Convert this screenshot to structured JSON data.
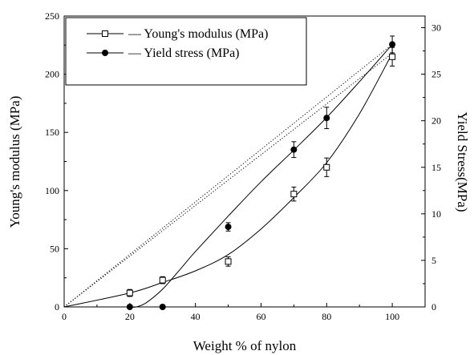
{
  "chart_data": {
    "type": "scatter",
    "xlabel": "Weight % of nylon",
    "ylabel_left": "Young's modulus (MPa)",
    "ylabel_right": "Yield Stress(MPa)",
    "xlim": [
      0,
      110
    ],
    "ylim_left": [
      0,
      250
    ],
    "ylim_right": [
      0,
      31.25
    ],
    "x_ticks": [
      0,
      20,
      40,
      60,
      80,
      100
    ],
    "y_left_ticks": [
      0,
      50,
      100,
      150,
      200,
      250
    ],
    "y_right_ticks": [
      0,
      5,
      10,
      15,
      20,
      25,
      30
    ],
    "grid": false,
    "legend_position": "top-left",
    "series": [
      {
        "name": "Young's modulus (MPa)",
        "axis": "left",
        "marker": "open-square",
        "x": [
          20,
          30,
          50,
          70,
          80,
          100
        ],
        "y": [
          12,
          23,
          39,
          97,
          120,
          215
        ],
        "error": [
          3,
          3,
          4,
          6,
          8,
          8
        ],
        "fit_x": [
          0,
          20,
          30,
          40,
          50,
          60,
          70,
          80,
          90,
          100
        ],
        "fit_y": [
          0,
          12,
          21,
          31,
          45,
          67,
          94,
          124,
          166,
          218
        ],
        "rule_of_mixtures": [
          [
            0,
            0
          ],
          [
            100,
            218
          ]
        ]
      },
      {
        "name": "Yield stress (MPa)",
        "axis": "right",
        "marker": "filled-circle",
        "x": [
          20,
          30,
          50,
          70,
          80,
          100
        ],
        "y": [
          0,
          0,
          8.6,
          16.9,
          20.3,
          28.2
        ],
        "error": [
          0,
          0,
          0.45,
          0.85,
          1.15,
          0.9
        ],
        "fit_x": [
          20,
          22,
          25,
          30,
          35,
          40,
          50,
          60,
          70,
          80,
          90,
          100
        ],
        "fit_y": [
          0,
          0,
          0.45,
          1.9,
          3.9,
          5.95,
          9.75,
          13.45,
          16.85,
          20.35,
          24.2,
          28.2
        ],
        "rule_of_mixtures": [
          [
            0,
            0
          ],
          [
            100,
            28.2
          ]
        ]
      }
    ]
  }
}
